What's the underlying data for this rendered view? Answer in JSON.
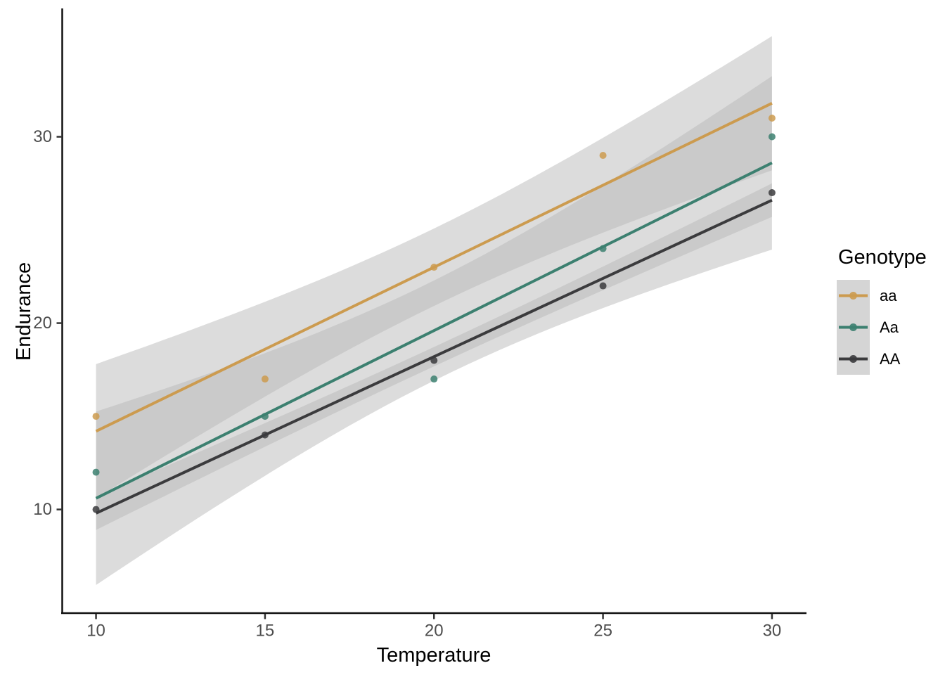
{
  "chart_data": {
    "type": "scatter",
    "title": "",
    "xlabel": "Temperature",
    "ylabel": "Endurance",
    "legend": {
      "title": "Genotype",
      "position": "right"
    },
    "axes": {
      "x_ticks": [
        "10",
        "15",
        "20",
        "25",
        "30"
      ],
      "y_ticks": [
        "10",
        "20",
        "30"
      ],
      "x_range": [
        9,
        31
      ],
      "y_range": [
        4.4,
        37
      ],
      "grid": "off",
      "theme": "classic"
    },
    "smooth": {
      "method": "lm",
      "ci_level": 0.95,
      "ribbon_color": "#B7B7B7",
      "ribbon_opacity": 0.49
    },
    "x": [
      10,
      15,
      20,
      25,
      30
    ],
    "series": [
      {
        "name": "aa",
        "color": "#CC9B4F",
        "values": [
          15,
          17,
          23,
          29,
          31
        ]
      },
      {
        "name": "Aa",
        "color": "#3C8070",
        "values": [
          12,
          15,
          17,
          24,
          30
        ]
      },
      {
        "name": "AA",
        "color": "#3B3B3D",
        "values": [
          10,
          14,
          18,
          22,
          27
        ]
      }
    ],
    "colors": {
      "background": "#FFFFFF",
      "axis_line": "#111111",
      "tick_mark": "#333333",
      "axis_text": "#4D4D4D",
      "legend_key_fill": "#D5D5D5"
    }
  }
}
